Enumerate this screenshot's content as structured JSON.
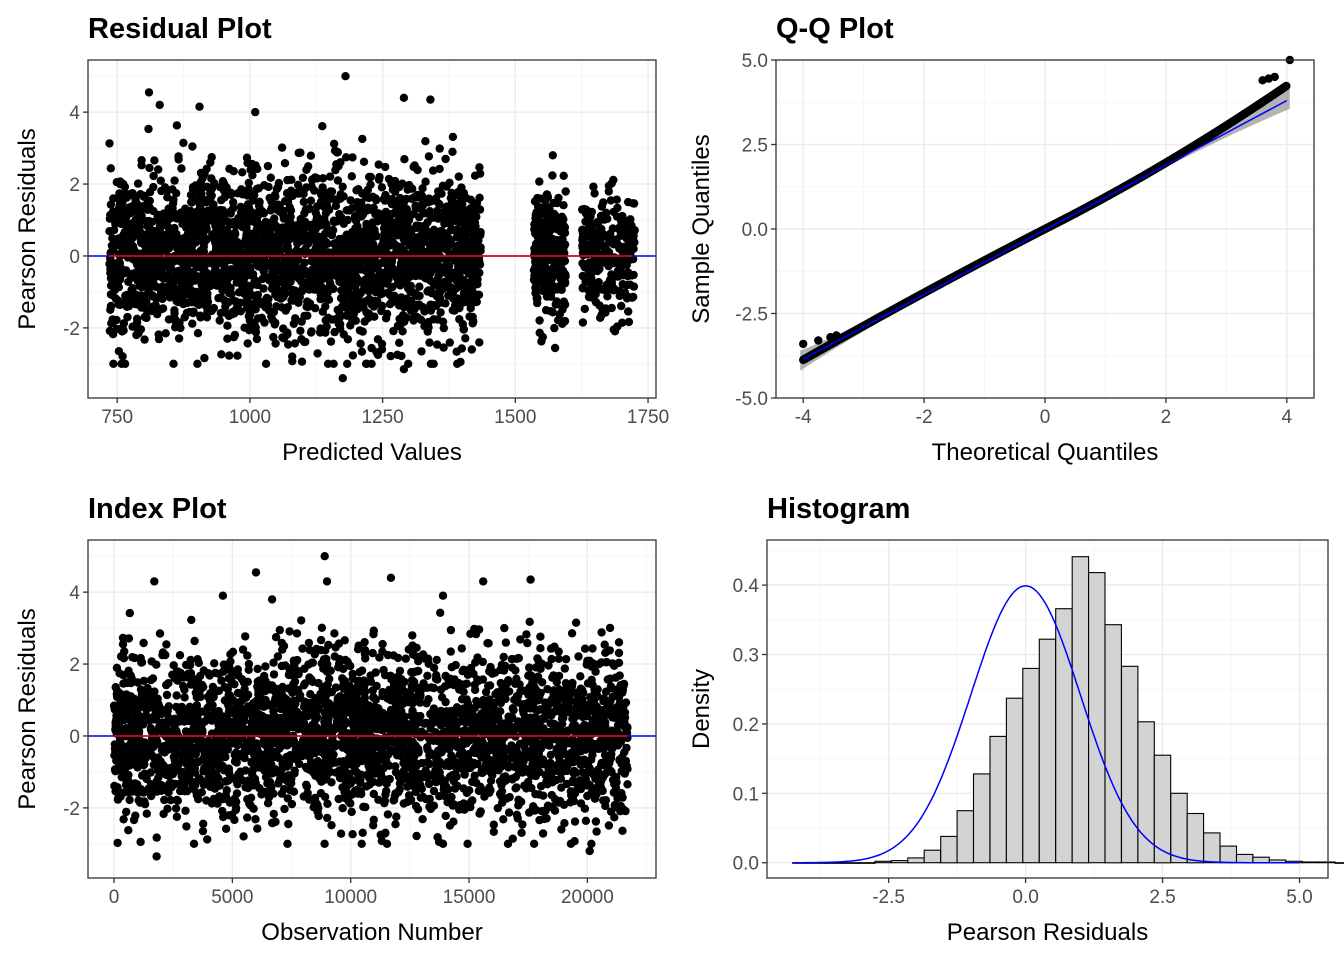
{
  "colors": {
    "points": "#000000",
    "zero_line": "#0000ff",
    "smooth_line": "#ff0000",
    "qq_line": "#0000ff",
    "qq_band": "#999999",
    "hist_fill": "#d3d3d3",
    "hist_border": "#000000",
    "density_line": "#0000ff",
    "grid_major": "#ebebeb",
    "grid_minor": "#f5f5f5",
    "panel_border": "#333333"
  },
  "chart_data": [
    {
      "id": "residual",
      "type": "scatter",
      "title": "Residual Plot",
      "xlabel": "Predicted Values",
      "ylabel": "Pearson Residuals",
      "xlim": [
        695,
        1765
      ],
      "ylim": [
        -3.95,
        5.45
      ],
      "xticks": [
        750,
        1000,
        1250,
        1500,
        1750
      ],
      "yticks": [
        -2,
        0,
        2,
        4
      ],
      "grid": true,
      "x_groups": [
        [
          735,
          1435
        ],
        [
          1535,
          1595
        ],
        [
          1625,
          1725
        ]
      ],
      "outliers": [
        [
          810,
          4.55
        ],
        [
          905,
          4.15
        ],
        [
          1175,
          -3.4
        ],
        [
          1180,
          5.0
        ],
        [
          1290,
          4.4
        ],
        [
          1290,
          -3.15
        ],
        [
          1340,
          4.35
        ],
        [
          830,
          4.2
        ],
        [
          1010,
          4.0
        ]
      ],
      "hlines": [
        {
          "y": 0,
          "color": "#0000ff"
        }
      ],
      "smooth": {
        "color": "#ff0000",
        "y": 0
      }
    },
    {
      "id": "qq",
      "type": "scatter",
      "title": "Q-Q Plot",
      "xlabel": "Theoretical Quantiles",
      "ylabel": "Sample Quantiles",
      "xlim": [
        -4.45,
        4.45
      ],
      "ylim": [
        -5.0,
        5.0
      ],
      "xticks": [
        -4,
        -2,
        0,
        2,
        4
      ],
      "yticks": [
        -5.0,
        -2.5,
        0.0,
        2.5,
        5.0
      ],
      "ytick_labels": [
        "-5.0",
        "-2.5",
        "0.0",
        "2.5",
        "5.0"
      ],
      "grid": true,
      "sample_range": [
        -3.4,
        5.0
      ],
      "reference_line": {
        "x": [
          -4.0,
          4.0
        ],
        "y": [
          -3.85,
          3.8
        ]
      },
      "band": true
    },
    {
      "id": "index",
      "type": "scatter",
      "title": "Index Plot",
      "xlabel": "Observation Number",
      "ylabel": "Pearson Residuals",
      "xlim": [
        -1100,
        22900
      ],
      "ylim": [
        -3.95,
        5.45
      ],
      "xticks": [
        0,
        5000,
        10000,
        15000,
        20000
      ],
      "yticks": [
        -2,
        0,
        2,
        4
      ],
      "grid": true,
      "x_range": [
        0,
        21700
      ],
      "outliers": [
        [
          1700,
          4.3
        ],
        [
          1800,
          -3.35
        ],
        [
          6000,
          4.55
        ],
        [
          8900,
          5.0
        ],
        [
          11700,
          4.4
        ],
        [
          15600,
          4.3
        ],
        [
          17600,
          4.35
        ],
        [
          20100,
          -3.2
        ],
        [
          9000,
          4.3
        ],
        [
          4600,
          3.9
        ]
      ],
      "hlines": [
        {
          "y": 0,
          "color": "#0000ff"
        }
      ],
      "smooth": {
        "color": "#ff0000",
        "y": 0
      }
    },
    {
      "id": "histogram",
      "type": "bar",
      "title": "Histogram",
      "xlabel": "Pearson Residuals",
      "ylabel": "Density",
      "xlim": [
        -4.72,
        5.52
      ],
      "ylim": [
        -0.022,
        0.465
      ],
      "xticks": [
        -2.5,
        0.0,
        2.5,
        5.0
      ],
      "xtick_labels": [
        "-2.5",
        "0.0",
        "2.5",
        "5.0"
      ],
      "yticks": [
        0.0,
        0.1,
        0.2,
        0.3,
        0.4
      ],
      "ytick_labels": [
        "0.0",
        "0.1",
        "0.2",
        "0.3",
        "0.4"
      ],
      "grid": true,
      "bin_start": -4.25,
      "bin_width": 0.3,
      "densities": [
        0.0,
        0.0,
        0.0,
        0.0,
        0.0,
        0.002,
        0.003,
        0.007,
        0.018,
        0.038,
        0.075,
        0.128,
        0.182,
        0.237,
        0.28,
        0.322,
        0.366,
        0.441,
        0.418,
        0.343,
        0.283,
        0.203,
        0.155,
        0.1,
        0.071,
        0.043,
        0.024,
        0.012,
        0.008,
        0.004,
        0.002,
        0.001,
        0.001,
        0.0
      ],
      "density_curve": {
        "type": "normal",
        "mean": 0,
        "sd": 1,
        "range": [
          -4.25,
          5.0
        ]
      }
    }
  ]
}
